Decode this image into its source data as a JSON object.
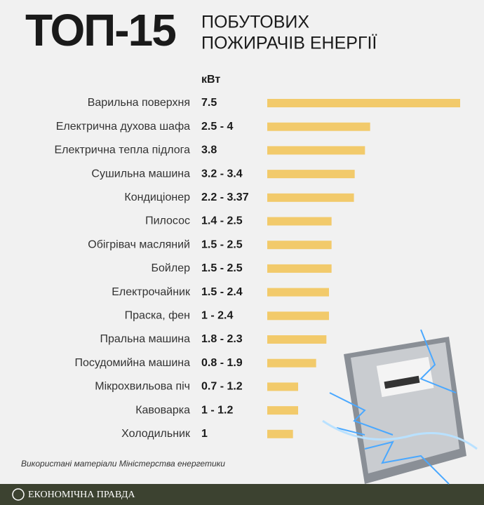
{
  "chart_data": {
    "type": "bar",
    "orientation": "horizontal",
    "title": "ТОП-15",
    "subtitle": [
      "ПОБУТОВИХ",
      "ПОЖИРАЧІВ ЕНЕРГІЇ"
    ],
    "unit_label": "кВт",
    "categories": [
      "Варильна поверхня",
      "Електрична духова шафа",
      "Електрична тепла підлога",
      "Сушильна машина",
      "Кондиціонер",
      "Пилосос",
      "Обігрівач масляний",
      "Бойлер",
      "Електрочайник",
      "Праска, фен",
      "Пральна машина",
      "Посудомийна машина",
      "Мікрохвильова піч",
      "Кавоварка",
      "Холодильник"
    ],
    "values": [
      7.5,
      4,
      3.8,
      3.4,
      3.37,
      2.5,
      2.5,
      2.5,
      2.4,
      2.4,
      2.3,
      1.9,
      1.2,
      1.2,
      1
    ],
    "value_labels": [
      "7.5",
      "2.5 - 4",
      "3.8",
      "3.2 - 3.4",
      "2.2 - 3.37",
      "1.4 - 2.5",
      "1.5 - 2.5",
      "1.5 - 2.5",
      "1.5 - 2.4",
      "1 - 2.4",
      "1.8 - 2.3",
      "0.8 - 1.9",
      "0.7 - 1.2",
      "1 - 1.2",
      "1"
    ],
    "color": "#f2ca6b",
    "source": "Використані матеріали Міністерства енергетики",
    "footer": "ЕКОНОМІЧНА ПРАВДА"
  }
}
